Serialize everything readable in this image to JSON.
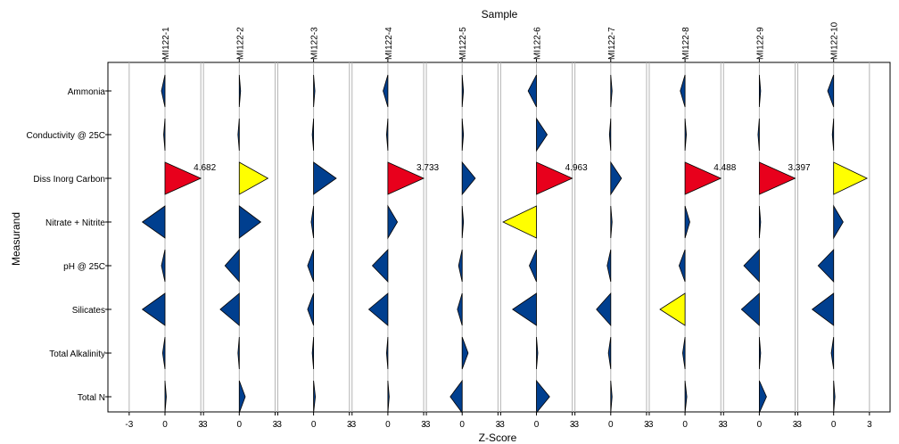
{
  "chart_data": {
    "type": "triangle-zscore-grid",
    "title": "Sample",
    "xlabel": "Z-Score",
    "ylabel": "Measurand",
    "xlim": [
      -3.9,
      3.9
    ],
    "x_ticks": [
      -3,
      0,
      3
    ],
    "x_tick_labels": [
      "-3",
      "0",
      "3"
    ],
    "grid": true,
    "samples": [
      "MI122-1",
      "MI122-2",
      "MI122-3",
      "MI122-4",
      "MI122-5",
      "MI122-6",
      "MI122-7",
      "MI122-8",
      "MI122-9",
      "MI122-10"
    ],
    "measurands": [
      "Ammonia",
      "Conductivity @ 25C",
      "Diss Inorg Carbon",
      "Nitrate + Nitrite",
      "pH @ 25C",
      "Silicates",
      "Total Alkalinity",
      "Total N"
    ],
    "zscores": [
      [
        -0.3,
        -0.1,
        3.0,
        -1.9,
        -0.3,
        -1.9,
        -0.2,
        0.05
      ],
      [
        0.0,
        -0.02,
        2.4,
        1.8,
        -1.2,
        -1.6,
        -0.05,
        0.5
      ],
      [
        0.0,
        -0.05,
        1.9,
        -0.2,
        -0.5,
        -0.5,
        -0.05,
        0.15
      ],
      [
        -0.4,
        -0.05,
        3.0,
        0.8,
        -1.3,
        -1.6,
        -0.1,
        0.1
      ],
      [
        0.0,
        0.0,
        1.1,
        0.05,
        -0.3,
        -0.4,
        0.5,
        -1.0
      ],
      [
        -0.7,
        0.9,
        3.0,
        -2.8,
        -0.6,
        -2.0,
        0.05,
        1.1
      ],
      [
        0.0,
        -0.05,
        0.9,
        0.05,
        -0.3,
        -1.2,
        -0.2,
        0.1
      ],
      [
        -0.4,
        0.02,
        3.0,
        0.4,
        -0.5,
        -2.1,
        -0.2,
        0.15
      ],
      [
        0.0,
        -0.1,
        3.0,
        0.0,
        -1.3,
        -1.5,
        0.05,
        0.6
      ],
      [
        -0.5,
        -0.05,
        2.8,
        0.8,
        -1.3,
        -1.8,
        -0.2,
        0.05
      ]
    ],
    "colors": [
      [
        "blue",
        "blue",
        "red",
        "blue",
        "blue",
        "blue",
        "blue",
        "blue"
      ],
      [
        "blue",
        "blue",
        "yellow",
        "blue",
        "blue",
        "blue",
        "blue",
        "blue"
      ],
      [
        "blue",
        "blue",
        "blue",
        "blue",
        "blue",
        "blue",
        "blue",
        "blue"
      ],
      [
        "blue",
        "blue",
        "red",
        "blue",
        "blue",
        "blue",
        "blue",
        "blue"
      ],
      [
        "blue",
        "blue",
        "blue",
        "blue",
        "blue",
        "blue",
        "blue",
        "blue"
      ],
      [
        "blue",
        "blue",
        "red",
        "yellow",
        "blue",
        "blue",
        "blue",
        "blue"
      ],
      [
        "blue",
        "blue",
        "blue",
        "blue",
        "blue",
        "blue",
        "blue",
        "blue"
      ],
      [
        "blue",
        "blue",
        "red",
        "blue",
        "blue",
        "yellow",
        "blue",
        "blue"
      ],
      [
        "blue",
        "blue",
        "red",
        "blue",
        "blue",
        "blue",
        "blue",
        "blue"
      ],
      [
        "blue",
        "blue",
        "yellow",
        "blue",
        "blue",
        "blue",
        "blue",
        "blue"
      ]
    ],
    "annotations": [
      {
        "sample": 0,
        "measurand": 2,
        "text": "4.682"
      },
      {
        "sample": 3,
        "measurand": 2,
        "text": "3.733"
      },
      {
        "sample": 5,
        "measurand": 2,
        "text": "4.963"
      },
      {
        "sample": 7,
        "measurand": 2,
        "text": "4.488"
      },
      {
        "sample": 8,
        "measurand": 2,
        "text": "3.397"
      }
    ],
    "palette": {
      "blue": "#003f8f",
      "red": "#e8001c",
      "yellow": "#ffff00",
      "stroke": "#000000",
      "grid": "#b4b4b4",
      "frame": "#000000"
    }
  }
}
